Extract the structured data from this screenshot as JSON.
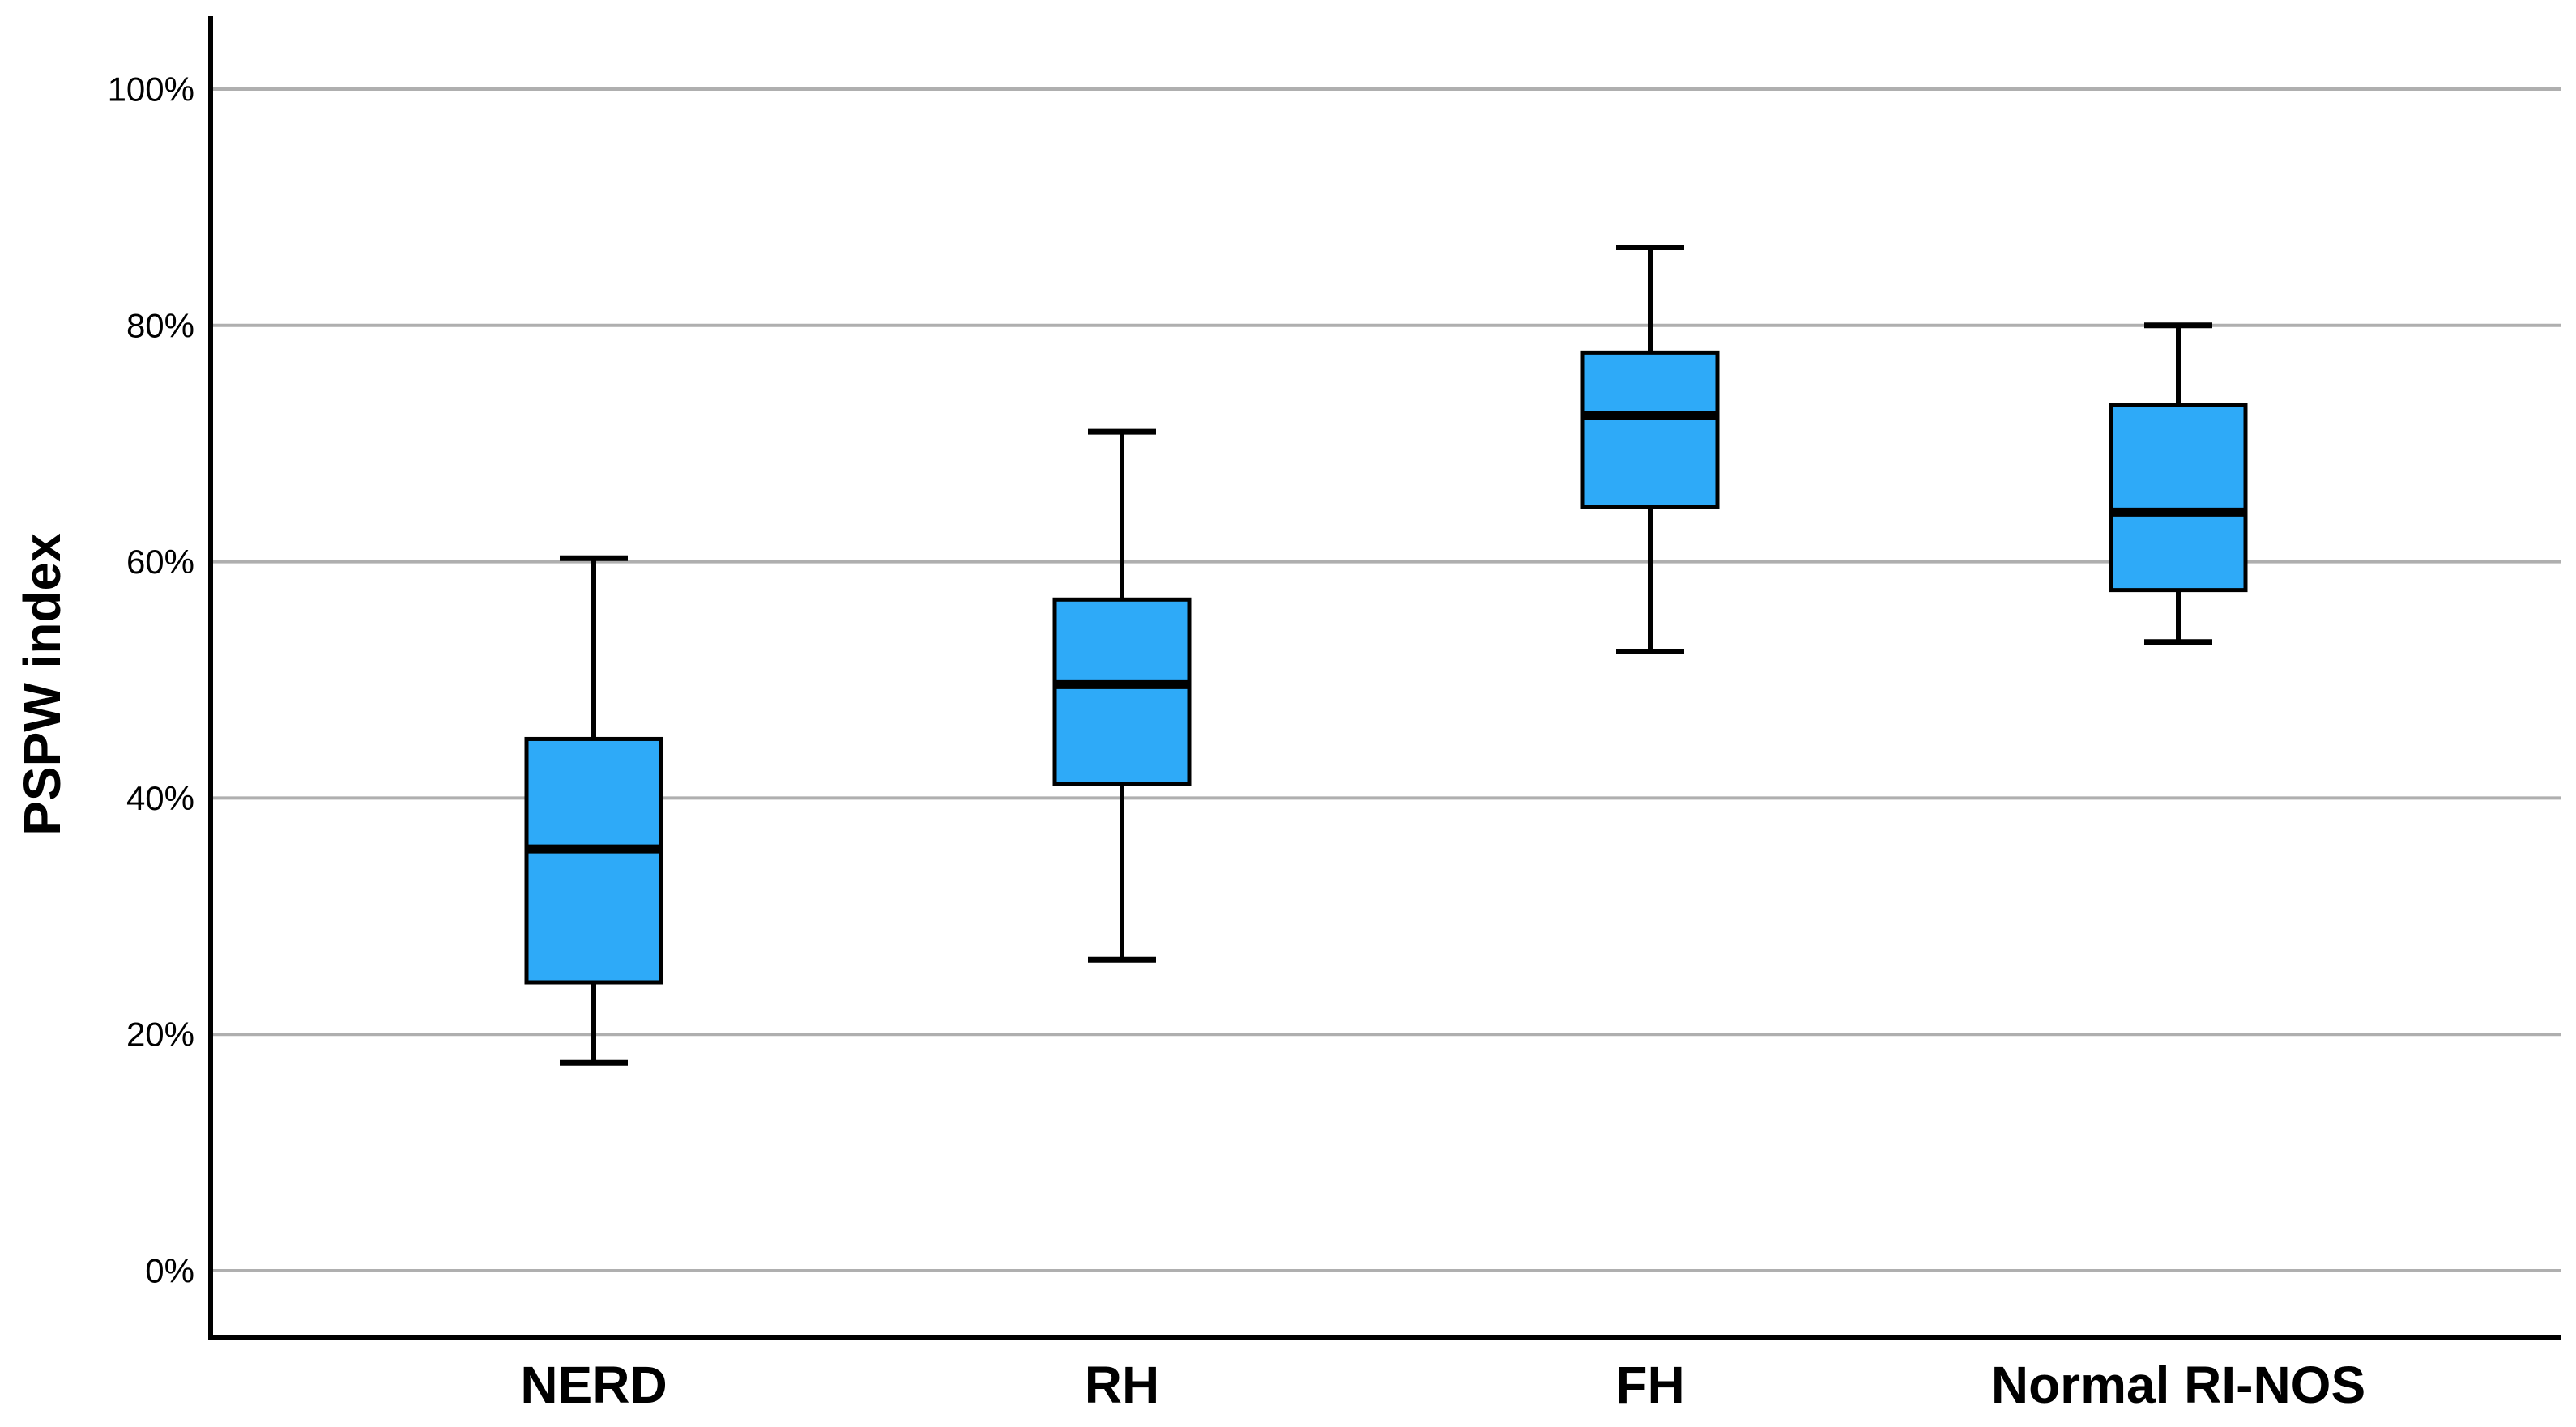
{
  "figure": {
    "kind": "statistical-boxplot-figure",
    "background": "#ffffff"
  },
  "chart_data": {
    "type": "boxplot",
    "title": "",
    "xlabel": "",
    "ylabel": "PSPW index",
    "categories": [
      "NERD",
      "RH",
      "FH",
      "Normal RI-NOS"
    ],
    "ylim": [
      0,
      100
    ],
    "yticks": [
      0,
      20,
      40,
      60,
      80,
      100
    ],
    "ytick_labels": [
      "0%",
      "20%",
      "40%",
      "60%",
      "80%",
      "100%"
    ],
    "grid": "horizontal-gridlines-at-every-tick",
    "legend": "none",
    "series": [
      {
        "category": "NERD",
        "whisker_low": 17.6,
        "q1": 24.4,
        "median": 35.7,
        "q3": 45.0,
        "whisker_high": 60.3
      },
      {
        "category": "RH",
        "whisker_low": 26.3,
        "q1": 41.2,
        "median": 49.6,
        "q3": 56.8,
        "whisker_high": 71.0
      },
      {
        "category": "FH",
        "whisker_low": 52.4,
        "q1": 64.6,
        "median": 72.4,
        "q3": 77.7,
        "whisker_high": 86.6
      },
      {
        "category": "Normal RI-NOS",
        "whisker_low": 53.2,
        "q1": 57.6,
        "median": 64.2,
        "q3": 73.3,
        "whisker_high": 80.0
      }
    ],
    "colors": {
      "box_fill": "#2EAAF8",
      "box_border": "#000000",
      "median_line": "#000000",
      "whisker": "#000000",
      "gridline": "#AFAFAF",
      "axis_line": "#000000",
      "text": "#000000"
    }
  }
}
